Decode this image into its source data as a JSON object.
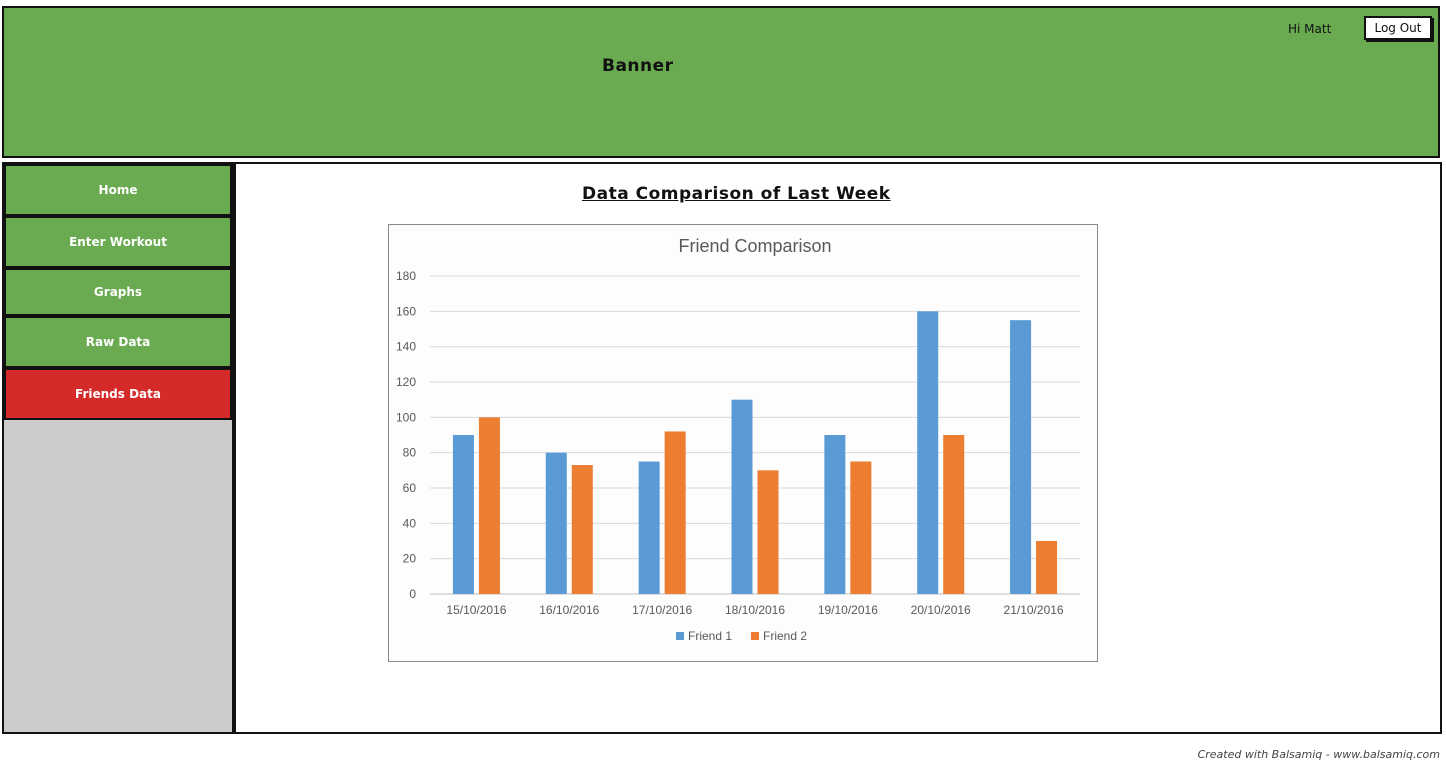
{
  "banner": {
    "title": "Banner",
    "greeting": "Hi Matt",
    "logout_label": "Log Out"
  },
  "sidebar": {
    "items": [
      {
        "label": "Home",
        "active": false
      },
      {
        "label": "Enter Workout",
        "active": false
      },
      {
        "label": "Graphs",
        "active": false
      },
      {
        "label": "Raw Data",
        "active": false
      },
      {
        "label": "Friends Data",
        "active": true
      }
    ]
  },
  "main": {
    "title": "Data Comparison of Last Week"
  },
  "colors": {
    "banner": "#6aaa50",
    "nav_active": "#d42a2a",
    "sidebar_bg": "#cccccc",
    "friend1": "#5b9bd5",
    "friend2": "#ed7d31"
  },
  "chart_data": {
    "type": "bar",
    "title": "Friend Comparison",
    "categories": [
      "15/10/2016",
      "16/10/2016",
      "17/10/2016",
      "18/10/2016",
      "19/10/2016",
      "20/10/2016",
      "21/10/2016"
    ],
    "series": [
      {
        "name": "Friend 1",
        "color": "#5b9bd5",
        "values": [
          90,
          80,
          75,
          110,
          90,
          160,
          155
        ]
      },
      {
        "name": "Friend 2",
        "color": "#ed7d31",
        "values": [
          100,
          73,
          92,
          70,
          75,
          90,
          30
        ]
      }
    ],
    "ylim": [
      0,
      180
    ],
    "yticks": [
      0,
      20,
      40,
      60,
      80,
      100,
      120,
      140,
      160,
      180
    ],
    "grid": true,
    "legend": "bottom"
  },
  "footer": {
    "credit": "Created with Balsamiq - www.balsamiq.com"
  }
}
